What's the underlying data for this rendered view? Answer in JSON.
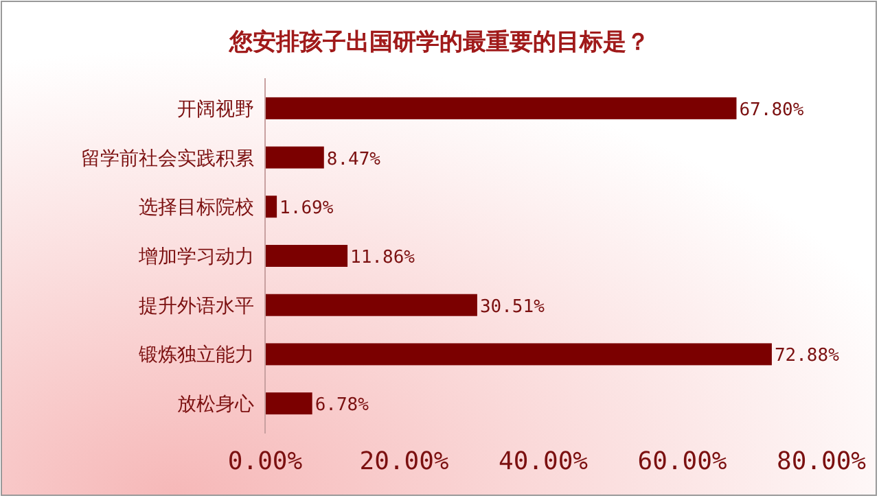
{
  "chart_data": {
    "type": "bar",
    "orientation": "horizontal",
    "title": "您安排孩子出国研学的最重要的目标是？",
    "categories": [
      "开阔视野",
      "留学前社会实践积累",
      "选择目标院校",
      "增加学习动力",
      "提升外语水平",
      "锻炼独立能力",
      "放松身心"
    ],
    "values": [
      67.8,
      8.47,
      1.69,
      11.86,
      30.51,
      72.88,
      6.78
    ],
    "value_labels": [
      "67.80%",
      "8.47%",
      "1.69%",
      "11.86%",
      "30.51%",
      "72.88%",
      "6.78%"
    ],
    "color": "#7b0000",
    "xlim": [
      0,
      80
    ],
    "xticks": [
      {
        "value": 0,
        "label": "0.00%"
      },
      {
        "value": 20,
        "label": "20.00%"
      },
      {
        "value": 40,
        "label": "40.00%"
      },
      {
        "value": 60,
        "label": "60.00%"
      },
      {
        "value": 80,
        "label": "80.00%"
      }
    ]
  }
}
